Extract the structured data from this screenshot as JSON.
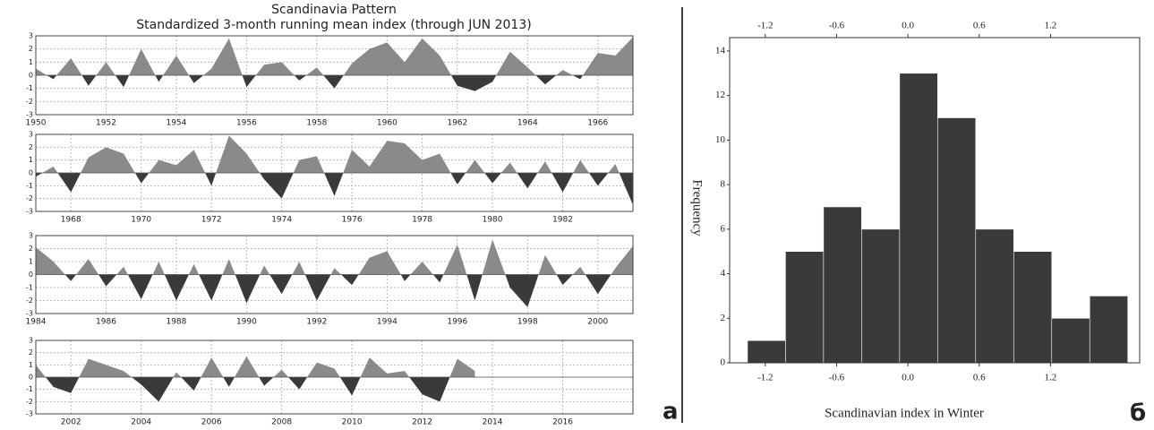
{
  "chart_data": [
    {
      "type": "area",
      "title": "Scandinavia Pattern",
      "subtitle": "Standardized 3-month running mean index (through JUN 2013)",
      "pos_color": "#8a8a8a",
      "neg_color": "#3a3a3a",
      "grid": true,
      "x": [
        1950,
        1950.5,
        1951,
        1951.5,
        1952,
        1952.5,
        1953,
        1953.5,
        1954,
        1954.5,
        1955,
        1955.5,
        1956,
        1956.5,
        1957,
        1957.5,
        1958,
        1958.5,
        1959,
        1959.5,
        1960,
        1960.5,
        1961,
        1961.5,
        1962,
        1962.5,
        1963,
        1963.5,
        1964,
        1964.5,
        1965,
        1965.5,
        1966,
        1966.5,
        1967
      ],
      "values": [
        0.5,
        -0.3,
        1.3,
        -0.8,
        1.0,
        -0.9,
        2.0,
        -0.5,
        1.5,
        -0.6,
        0.5,
        2.8,
        -0.9,
        0.8,
        1.0,
        -0.4,
        0.6,
        -1.0,
        0.9,
        2.0,
        2.5,
        1.0,
        2.8,
        1.5,
        -0.8,
        -1.2,
        -0.5,
        1.8,
        0.6,
        -0.7,
        0.4,
        -0.3,
        1.7,
        1.5,
        2.9
      ],
      "xlim": [
        1950,
        1967
      ],
      "xticks": [
        1950,
        1952,
        1954,
        1956,
        1958,
        1960,
        1962,
        1964,
        1966
      ],
      "ylim": [
        -3,
        3
      ],
      "yticks": [
        -3,
        -2,
        -1,
        0,
        1,
        2,
        3
      ]
    },
    {
      "type": "area",
      "pos_color": "#8a8a8a",
      "neg_color": "#3a3a3a",
      "grid": true,
      "x": [
        1967,
        1967.5,
        1968,
        1968.5,
        1969,
        1969.5,
        1970,
        1970.5,
        1971,
        1971.5,
        1972,
        1972.5,
        1973,
        1973.5,
        1974,
        1974.5,
        1975,
        1975.5,
        1976,
        1976.5,
        1977,
        1977.5,
        1978,
        1978.5,
        1979,
        1979.5,
        1980,
        1980.5,
        1981,
        1981.5,
        1982,
        1982.5,
        1983,
        1983.5,
        1984
      ],
      "values": [
        -0.3,
        0.5,
        -1.5,
        1.2,
        2.0,
        1.5,
        -0.8,
        1.0,
        0.6,
        1.8,
        -1.0,
        2.9,
        1.5,
        -0.5,
        -2.0,
        1.0,
        1.3,
        -1.8,
        1.8,
        0.5,
        2.5,
        2.3,
        1.0,
        1.5,
        -0.9,
        1.0,
        -0.8,
        0.8,
        -1.2,
        0.9,
        -1.5,
        1.0,
        -1.0,
        0.7,
        -2.5
      ],
      "xlim": [
        1967,
        1984
      ],
      "xticks": [
        1968,
        1970,
        1972,
        1974,
        1976,
        1978,
        1980,
        1982
      ],
      "ylim": [
        -3,
        3
      ],
      "yticks": [
        -3,
        -2,
        -1,
        0,
        1,
        2,
        3
      ]
    },
    {
      "type": "area",
      "pos_color": "#8a8a8a",
      "neg_color": "#3a3a3a",
      "grid": true,
      "x": [
        1984,
        1984.5,
        1985,
        1985.5,
        1986,
        1986.5,
        1987,
        1987.5,
        1988,
        1988.5,
        1989,
        1989.5,
        1990,
        1990.5,
        1991,
        1991.5,
        1992,
        1992.5,
        1993,
        1993.5,
        1994,
        1994.5,
        1995,
        1995.5,
        1996,
        1996.5,
        1997,
        1997.5,
        1998,
        1998.5,
        1999,
        1999.5,
        2000,
        2000.5,
        2001
      ],
      "values": [
        2.1,
        1.0,
        -0.5,
        1.2,
        -0.9,
        0.6,
        -1.9,
        1.0,
        -2.0,
        0.8,
        -2.0,
        1.2,
        -2.2,
        0.7,
        -1.5,
        1.0,
        -2.0,
        0.5,
        -0.8,
        1.3,
        1.8,
        -0.5,
        1.0,
        -0.6,
        2.3,
        -2.0,
        2.7,
        -1.0,
        -2.5,
        1.5,
        -0.8,
        0.6,
        -1.5,
        0.5,
        2.2
      ],
      "xlim": [
        1984,
        2001
      ],
      "xticks": [
        1984,
        1986,
        1988,
        1990,
        1992,
        1994,
        1996,
        1998,
        2000
      ],
      "ylim": [
        -3,
        3
      ],
      "yticks": [
        -3,
        -2,
        -1,
        0,
        1,
        2,
        3
      ]
    },
    {
      "type": "area",
      "panel_label": "а",
      "pos_color": "#8a8a8a",
      "neg_color": "#3a3a3a",
      "grid": true,
      "x": [
        2001,
        2001.5,
        2002,
        2002.5,
        2003,
        2003.5,
        2004,
        2004.5,
        2005,
        2005.5,
        2006,
        2006.5,
        2007,
        2007.5,
        2008,
        2008.5,
        2009,
        2009.5,
        2010,
        2010.5,
        2011,
        2011.5,
        2012,
        2012.5,
        2013,
        2013.5
      ],
      "values": [
        1.0,
        -0.8,
        -1.3,
        1.5,
        1.0,
        0.5,
        -0.6,
        -2.0,
        0.4,
        -1.1,
        1.6,
        -0.8,
        1.7,
        -0.7,
        0.6,
        -1.0,
        1.2,
        0.7,
        -1.5,
        1.6,
        0.3,
        0.5,
        -1.4,
        -2.0,
        1.5,
        0.5
      ],
      "xlim": [
        2001,
        2018
      ],
      "xticks": [
        2002,
        2004,
        2006,
        2008,
        2010,
        2012,
        2014,
        2016
      ],
      "ylim": [
        -3,
        3
      ],
      "yticks": [
        -3,
        -2,
        -1,
        0,
        1,
        2,
        3
      ]
    },
    {
      "type": "histogram",
      "panel_label": "б",
      "x_label": "Scandinavian index in Winter",
      "y_label": "Frequency",
      "color": "#3a3a3a",
      "bins": [
        -1.35,
        -1.03,
        -0.71,
        -0.39,
        -0.07,
        0.25,
        0.57,
        0.89,
        1.21,
        1.53,
        1.85
      ],
      "values": [
        1,
        5,
        7,
        6,
        13,
        11,
        6,
        5,
        2,
        3
      ],
      "xlim": [
        -1.5,
        1.95
      ],
      "xticks": [
        -1.2,
        -0.6,
        {
          "value": 0,
          "label": "0.0"
        },
        0.6,
        1.2
      ],
      "ylim": [
        0,
        14.6
      ],
      "yticks": [
        0,
        2,
        4,
        6,
        8,
        10,
        12,
        14
      ]
    }
  ]
}
